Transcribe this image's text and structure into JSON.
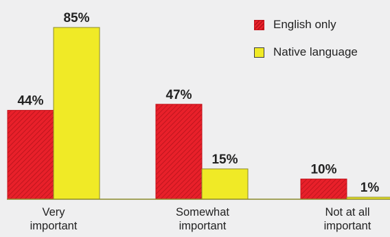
{
  "chart_data": {
    "type": "bar",
    "categories": [
      [
        "Very",
        "important"
      ],
      [
        "Somewhat",
        "important"
      ],
      [
        "Not at all",
        "important"
      ]
    ],
    "series": [
      {
        "name": "English only",
        "values": [
          44,
          47,
          10
        ],
        "labels": [
          "44%",
          "47%",
          "10%"
        ],
        "color": "#e8202a",
        "pattern": "diagonal-hatch"
      },
      {
        "name": "Native language",
        "values": [
          85,
          15,
          1
        ],
        "labels": [
          "85%",
          "15%",
          "1%"
        ],
        "color": "#f0ea26",
        "pattern": "solid"
      }
    ],
    "ylim": [
      0,
      85
    ],
    "title": "",
    "xlabel": "",
    "ylabel": "",
    "grid": false,
    "legend": "top-right",
    "background": "#efeff0"
  }
}
